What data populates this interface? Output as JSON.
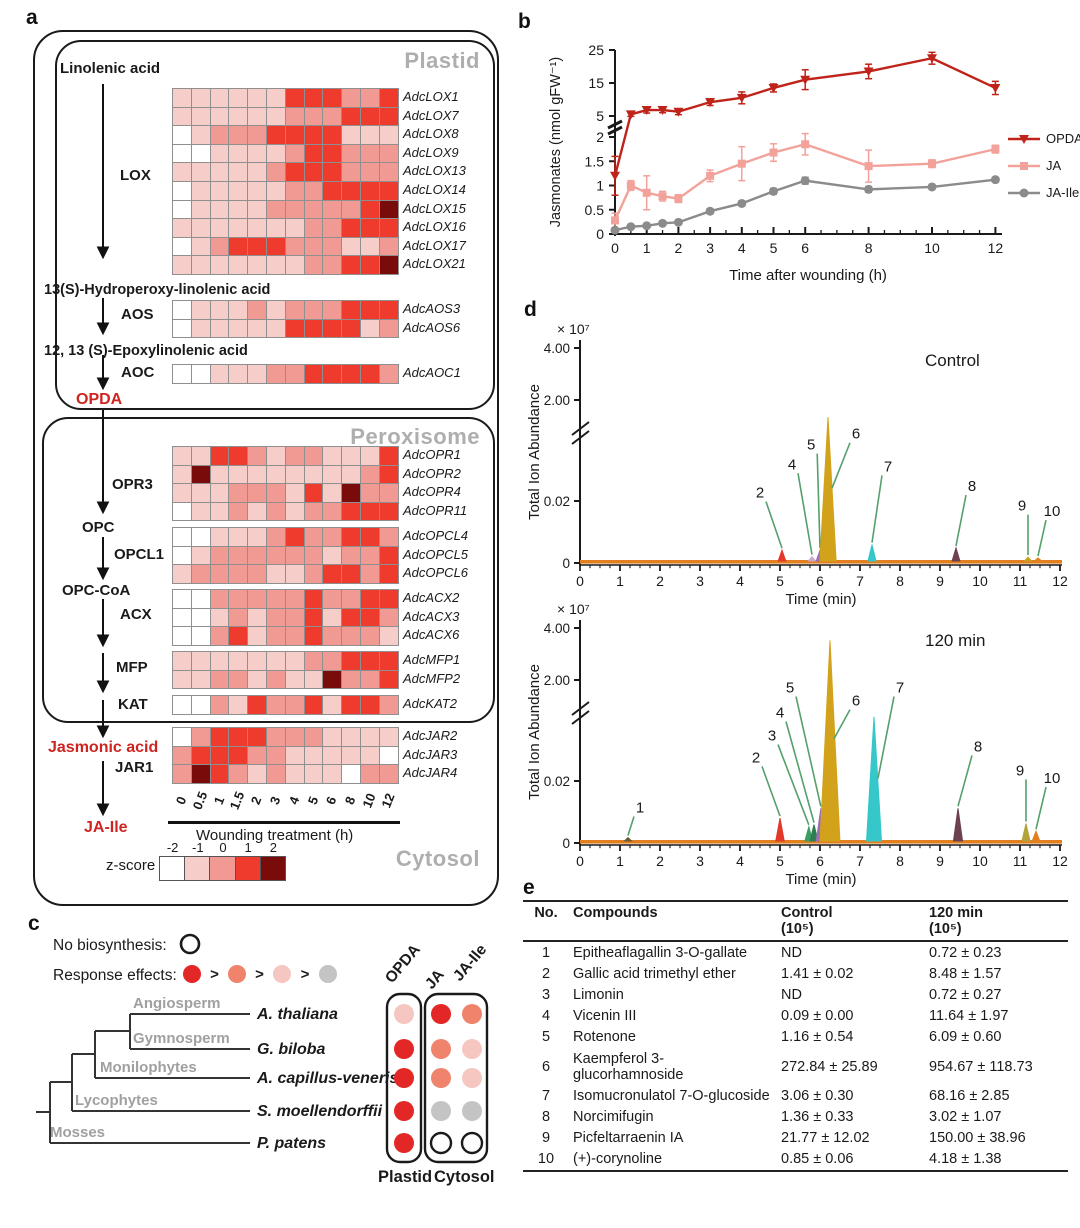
{
  "figure": {
    "panel_labels": {
      "a": "a",
      "b": "b",
      "c": "c",
      "d": "d",
      "e": "e"
    }
  },
  "colors": {
    "heat_scale": [
      "#ffffff",
      "#f7cdc9",
      "#f19a94",
      "#ee3b2d",
      "#7a0b0b"
    ],
    "leader_green": "#55a06b",
    "baseline_orange": "#e2801f",
    "gray_compartment": "#aeaeae",
    "red_text": "#cf2420"
  },
  "panel_a": {
    "plastid_label": "Plastid",
    "peroxisome_label": "Peroxisome",
    "cytosol_label": "Cytosol",
    "metabolites": {
      "linolenic": "Linolenic acid",
      "hydroperoxy": "13(S)-Hydroperoxy-linolenic acid",
      "epoxy": "12, 13 (S)-Epoxylinolenic acid",
      "opda": "OPDA",
      "opc": "OPC",
      "opc_coa": "OPC-CoA",
      "jasmonic": "Jasmonic acid",
      "ja_ile": "JA-Ile"
    },
    "enzymes": {
      "lox": "LOX",
      "aos": "AOS",
      "aoc": "AOC",
      "opr": "OPR3",
      "opcl": "OPCL1",
      "acx": "ACX",
      "mfp": "MFP",
      "kat": "KAT",
      "jar": "JAR1"
    },
    "time_labels": [
      "0",
      "0.5",
      "1",
      "1.5",
      "2",
      "3",
      "4",
      "5",
      "6",
      "8",
      "10",
      "12"
    ],
    "x_axis_label": "Wounding treatment (h)",
    "zscore_label": "z-score",
    "zscore_ticks": [
      "-2",
      "-1",
      "0",
      "1",
      "2"
    ],
    "heatmaps": [
      {
        "id": "lox",
        "genes": [
          "AdcLOX1",
          "AdcLOX7",
          "AdcLOX8",
          "AdcLOX9",
          "AdcLOX13",
          "AdcLOX14",
          "AdcLOX15",
          "AdcLOX16",
          "AdcLOX17",
          "AdcLOX21"
        ],
        "rows": [
          [
            1,
            1,
            1,
            1,
            1,
            1,
            3,
            3,
            3,
            2,
            2,
            3
          ],
          [
            1,
            1,
            1,
            1,
            1,
            1,
            2,
            2,
            2,
            3,
            3,
            3
          ],
          [
            0,
            1,
            2,
            2,
            2,
            3,
            3,
            3,
            3,
            1,
            1,
            1
          ],
          [
            0,
            0,
            1,
            1,
            1,
            1,
            2,
            3,
            3,
            2,
            2,
            2
          ],
          [
            1,
            1,
            1,
            1,
            1,
            2,
            3,
            3,
            3,
            2,
            2,
            2
          ],
          [
            0,
            1,
            1,
            1,
            1,
            1,
            2,
            2,
            3,
            3,
            3,
            3
          ],
          [
            0,
            1,
            1,
            1,
            1,
            2,
            2,
            2,
            2,
            2,
            3,
            4
          ],
          [
            1,
            1,
            1,
            1,
            1,
            1,
            1,
            2,
            2,
            3,
            3,
            3
          ],
          [
            0,
            1,
            2,
            3,
            3,
            3,
            2,
            2,
            2,
            1,
            1,
            2
          ],
          [
            1,
            1,
            1,
            1,
            1,
            1,
            1,
            2,
            2,
            3,
            3,
            4
          ]
        ]
      },
      {
        "id": "aos",
        "genes": [
          "AdcAOS3",
          "AdcAOS6"
        ],
        "rows": [
          [
            0,
            1,
            1,
            1,
            2,
            1,
            2,
            2,
            2,
            3,
            3,
            3
          ],
          [
            0,
            1,
            1,
            1,
            1,
            1,
            3,
            3,
            3,
            3,
            1,
            2
          ]
        ]
      },
      {
        "id": "aoc",
        "genes": [
          "AdcAOC1"
        ],
        "rows": [
          [
            0,
            0,
            1,
            1,
            1,
            2,
            2,
            3,
            3,
            3,
            3,
            2
          ]
        ]
      },
      {
        "id": "opr",
        "genes": [
          "AdcOPR1",
          "AdcOPR2",
          "AdcOPR4",
          "AdcOPR11"
        ],
        "rows": [
          [
            1,
            1,
            3,
            3,
            2,
            1,
            2,
            2,
            1,
            1,
            1,
            3
          ],
          [
            1,
            4,
            1,
            1,
            1,
            1,
            1,
            1,
            1,
            1,
            2,
            3
          ],
          [
            1,
            1,
            1,
            2,
            2,
            2,
            1,
            3,
            1,
            4,
            2,
            2
          ],
          [
            0,
            1,
            1,
            2,
            1,
            2,
            1,
            2,
            2,
            3,
            3,
            3
          ]
        ]
      },
      {
        "id": "opcl",
        "genes": [
          "AdcOPCL4",
          "AdcOPCL5",
          "AdcOPCL6"
        ],
        "rows": [
          [
            0,
            0,
            1,
            1,
            1,
            2,
            3,
            2,
            2,
            3,
            3,
            2
          ],
          [
            0,
            1,
            2,
            2,
            2,
            2,
            2,
            2,
            1,
            2,
            2,
            3
          ],
          [
            1,
            2,
            2,
            2,
            2,
            1,
            1,
            2,
            3,
            3,
            2,
            3
          ]
        ]
      },
      {
        "id": "acx",
        "genes": [
          "AdcACX2",
          "AdcACX3",
          "AdcACX6"
        ],
        "rows": [
          [
            0,
            0,
            2,
            2,
            2,
            2,
            2,
            3,
            2,
            2,
            3,
            3
          ],
          [
            0,
            0,
            1,
            2,
            1,
            2,
            2,
            3,
            1,
            3,
            3,
            2
          ],
          [
            0,
            0,
            2,
            3,
            1,
            2,
            2,
            3,
            2,
            2,
            2,
            1
          ]
        ]
      },
      {
        "id": "mfp",
        "genes": [
          "AdcMFP1",
          "AdcMFP2"
        ],
        "rows": [
          [
            1,
            1,
            1,
            1,
            1,
            1,
            1,
            2,
            2,
            3,
            3,
            3
          ],
          [
            1,
            1,
            2,
            2,
            1,
            2,
            1,
            1,
            4,
            2,
            2,
            3
          ]
        ]
      },
      {
        "id": "kat",
        "genes": [
          "AdcKAT2"
        ],
        "rows": [
          [
            0,
            0,
            2,
            1,
            3,
            2,
            2,
            3,
            1,
            3,
            3,
            2
          ]
        ]
      },
      {
        "id": "jar",
        "genes": [
          "AdcJAR2",
          "AdcJAR3",
          "AdcJAR4"
        ],
        "rows": [
          [
            0,
            2,
            3,
            3,
            3,
            2,
            2,
            2,
            1,
            1,
            1,
            1
          ],
          [
            2,
            3,
            3,
            3,
            2,
            2,
            1,
            1,
            1,
            1,
            1,
            0
          ],
          [
            2,
            4,
            3,
            2,
            1,
            2,
            1,
            1,
            1,
            0,
            2,
            2
          ]
        ]
      }
    ]
  },
  "panel_c": {
    "no_biosynthesis_label": "No biosynthesis:",
    "response_effects_label": "Response effects:",
    "gt_symbol": ">",
    "response_colors": [
      "#e32726",
      "#f0836b",
      "#f6c6c1",
      "#c4c4c4"
    ],
    "clades": [
      "Angiosperm",
      "Gymnosperm",
      "Monilophytes",
      "Lycophytes",
      "Mosses"
    ],
    "species": [
      "A. thaliana",
      "G. biloba",
      "A. capillus-veneris",
      "S. moellendorffii",
      "P. patens"
    ],
    "columns": [
      "OPDA",
      "JA",
      "JA-Ile"
    ],
    "matrix": [
      [
        "pink",
        "red",
        "orange"
      ],
      [
        "red",
        "orange",
        "pink"
      ],
      [
        "red",
        "orange",
        "pink"
      ],
      [
        "red",
        "gray",
        "gray"
      ],
      [
        "red",
        "open",
        "open"
      ]
    ],
    "dot_colors": {
      "red": "#e32726",
      "orange": "#f0836b",
      "pink": "#f6c6c1",
      "gray": "#c4c4c4",
      "open": "#ffffff"
    },
    "box_labels": [
      "Plastid",
      "Cytosol"
    ]
  },
  "panel_e": {
    "headers": [
      [
        "No.",
        ""
      ],
      [
        "Compounds",
        ""
      ],
      [
        "Control",
        "(10⁵)"
      ],
      [
        "120 min",
        "(10⁵)"
      ]
    ],
    "rows": [
      [
        "1",
        "Epitheaflagallin 3-O-gallate",
        "ND",
        "0.72 ± 0.23"
      ],
      [
        "2",
        "Gallic acid trimethyl ether",
        "1.41 ± 0.02",
        "8.48 ± 1.57"
      ],
      [
        "3",
        "Limonin",
        "ND",
        "0.72 ± 0.27"
      ],
      [
        "4",
        "Vicenin III",
        "0.09 ± 0.00",
        "11.64 ± 1.97"
      ],
      [
        "5",
        "Rotenone",
        "1.16 ± 0.54",
        "6.09 ± 0.60"
      ],
      [
        "6",
        "Kaempferol 3-glucorhamnoside",
        "272.84 ± 25.89",
        "954.67 ± 118.73"
      ],
      [
        "7",
        "Isomucronulatol 7-O-glucoside",
        "3.06 ± 0.30",
        "68.16 ± 2.85"
      ],
      [
        "8",
        "Norcimifugin",
        "1.36 ± 0.33",
        "3.02 ± 1.07"
      ],
      [
        "9",
        "Picfeltarraenin IA",
        "21.77 ± 12.02",
        "150.00 ± 38.96"
      ],
      [
        "10",
        "(+)-corynoline",
        "0.85 ± 0.06",
        "4.18 ± 1.38"
      ]
    ]
  },
  "chart_data": [
    {
      "type": "line",
      "panel": "b",
      "title": "",
      "xlabel": "Time after wounding (h)",
      "ylabel": "Jasmonates (nmol gFW⁻¹)",
      "x": [
        0,
        0.5,
        1,
        1.5,
        2,
        3,
        4,
        5,
        6,
        8,
        10,
        12
      ],
      "xtick_labels": [
        "0",
        "1",
        "2",
        "3",
        "4",
        "5",
        "6",
        "8",
        "10",
        "12"
      ],
      "xticks": [
        0,
        1,
        2,
        3,
        4,
        5,
        6,
        8,
        10,
        12
      ],
      "yticks_lower": [
        {
          "v": 0,
          "label": "0"
        },
        {
          "v": 0.5,
          "label": "0.5"
        },
        {
          "v": 1,
          "label": "1"
        },
        {
          "v": 1.5,
          "label": "1.5"
        },
        {
          "v": 2,
          "label": "2"
        }
      ],
      "yticks_upper": [
        {
          "v": 5,
          "label": "5"
        },
        {
          "v": 15,
          "label": "15"
        },
        {
          "v": 25,
          "label": "25"
        }
      ],
      "axis_break": true,
      "legend_position": "right",
      "series": [
        {
          "name": "OPDA",
          "marker": "triangle-down",
          "color": "#bf2319",
          "values": [
            1.2,
            5.5,
            6.8,
            6.8,
            6.3,
            9.2,
            10.5,
            13.5,
            16,
            18.5,
            22.5,
            13.5
          ],
          "errors": [
            0.4,
            0.6,
            0.9,
            0.8,
            0.9,
            1.0,
            1.8,
            1.2,
            3.0,
            2.2,
            1.8,
            2.0
          ]
        },
        {
          "name": "JA",
          "marker": "square",
          "color": "#f2a29a",
          "values": [
            0.28,
            1.0,
            0.85,
            0.78,
            0.73,
            1.2,
            1.45,
            1.68,
            1.85,
            1.4,
            1.45,
            1.75
          ],
          "errors": [
            0.15,
            0.1,
            0.35,
            0.1,
            0.08,
            0.12,
            0.35,
            0.18,
            0.22,
            0.33,
            0.08,
            0.08
          ]
        },
        {
          "name": "JA-Ile",
          "marker": "circle",
          "color": "#8b8b8b",
          "values": [
            0.08,
            0.15,
            0.17,
            0.22,
            0.24,
            0.47,
            0.63,
            0.88,
            1.1,
            0.92,
            0.97,
            1.12
          ],
          "errors": [
            0.03,
            0.03,
            0.03,
            0.03,
            0.03,
            0.05,
            0.05,
            0.06,
            0.07,
            0.06,
            0.05,
            0.05
          ]
        }
      ]
    },
    {
      "type": "chromatogram",
      "panel": "d-top",
      "title": "Control",
      "scale_label": "× 10⁷",
      "ylabel": "Total Ion Abundance",
      "xlabel": "Time (min)",
      "yticks": [
        "0",
        "0.02",
        "2.00",
        "4.00"
      ],
      "xticks": [
        "0",
        "1",
        "2",
        "3",
        "4",
        "5",
        "6",
        "7",
        "8",
        "9",
        "10",
        "11",
        "12"
      ],
      "axis_break": true,
      "peaks": [
        {
          "n": "2",
          "rt": 5.05,
          "h": 0.05,
          "color": "#e2392b",
          "lx": 4.5,
          "ly": 0.3
        },
        {
          "n": "4",
          "rt": 5.8,
          "h": 0.02,
          "color": "#caa9cf",
          "lx": 5.3,
          "ly": 0.43
        },
        {
          "n": "5",
          "rt": 6.0,
          "h": 0.05,
          "color": "#9c6fb8",
          "lx": 5.78,
          "ly": 0.52
        },
        {
          "n": "6",
          "rt": 6.2,
          "h": 0.66,
          "color": "#d3a21b",
          "lx": 6.9,
          "ly": 0.57
        },
        {
          "n": "7",
          "rt": 7.3,
          "h": 0.075,
          "color": "#35c7c9",
          "lx": 7.7,
          "ly": 0.42
        },
        {
          "n": "8",
          "rt": 9.4,
          "h": 0.06,
          "color": "#6e4150",
          "lx": 9.8,
          "ly": 0.33
        },
        {
          "n": "9",
          "rt": 11.2,
          "h": 0.018,
          "color": "#c8a227",
          "lx": 11.05,
          "ly": 0.24
        },
        {
          "n": "10",
          "rt": 11.45,
          "h": 0.014,
          "color": "#e2801f",
          "lx": 11.8,
          "ly": 0.215
        }
      ]
    },
    {
      "type": "chromatogram",
      "panel": "d-bottom",
      "title": "120 min",
      "scale_label": "× 10⁷",
      "ylabel": "Total Ion Abundance",
      "xlabel": "Time (min)",
      "yticks": [
        "0",
        "0.02",
        "2.00",
        "4.00"
      ],
      "xticks": [
        "0",
        "1",
        "2",
        "3",
        "4",
        "5",
        "6",
        "7",
        "8",
        "9",
        "10",
        "11",
        "12"
      ],
      "axis_break": true,
      "peaks": [
        {
          "n": "1",
          "rt": 1.2,
          "h": 0.016,
          "color": "#6b5b3a",
          "lx": 1.5,
          "ly": 0.14
        },
        {
          "n": "2",
          "rt": 5.0,
          "h": 0.105,
          "color": "#e2392b",
          "lx": 4.4,
          "ly": 0.37
        },
        {
          "n": "3",
          "rt": 5.72,
          "h": 0.065,
          "color": "#3c9e63",
          "lx": 4.8,
          "ly": 0.47
        },
        {
          "n": "4",
          "rt": 5.85,
          "h": 0.075,
          "color": "#2f7d53",
          "lx": 5.0,
          "ly": 0.575
        },
        {
          "n": "5",
          "rt": 6.02,
          "h": 0.15,
          "color": "#9c6fb8",
          "lx": 5.25,
          "ly": 0.69
        },
        {
          "n": "6",
          "rt": 6.25,
          "h": 0.92,
          "color": "#d3a21b",
          "lx": 6.9,
          "ly": 0.63
        },
        {
          "n": "7",
          "rt": 7.35,
          "h": 0.57,
          "color": "#35c7c9",
          "lx": 8.0,
          "ly": 0.69
        },
        {
          "n": "8",
          "rt": 9.45,
          "h": 0.15,
          "color": "#6e4150",
          "lx": 9.95,
          "ly": 0.42
        },
        {
          "n": "9",
          "rt": 11.15,
          "h": 0.08,
          "color": "#b3a33c",
          "lx": 11.0,
          "ly": 0.31
        },
        {
          "n": "10",
          "rt": 11.4,
          "h": 0.045,
          "color": "#e2801f",
          "lx": 11.8,
          "ly": 0.275
        }
      ]
    }
  ]
}
